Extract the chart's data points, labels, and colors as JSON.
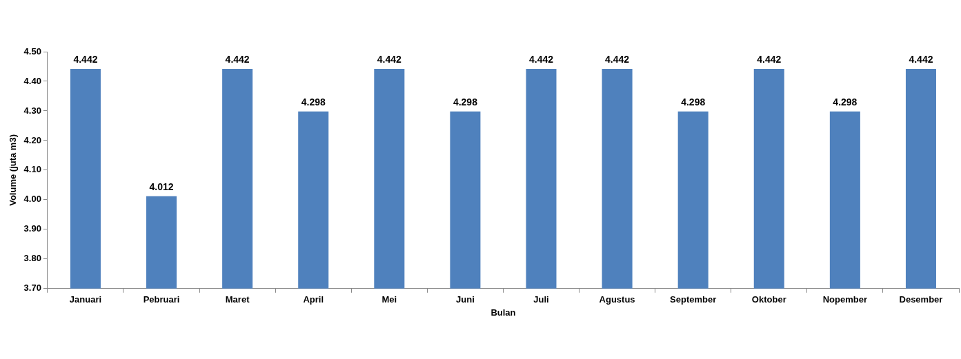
{
  "chart_data": {
    "type": "bar",
    "xlabel": "Bulan",
    "ylabel": "Volume (juta m3)",
    "categories": [
      "Januari",
      "Pebruari",
      "Maret",
      "April",
      "Mei",
      "Juni",
      "Juli",
      "Agustus",
      "September",
      "Oktober",
      "Nopember",
      "Desember"
    ],
    "values": [
      4.442,
      4.012,
      4.442,
      4.298,
      4.442,
      4.298,
      4.442,
      4.442,
      4.298,
      4.442,
      4.298,
      4.442
    ],
    "color": "#4f81bd",
    "ylim": [
      3.7,
      4.5
    ],
    "yticks": [
      {
        "value": 3.7,
        "label": "3.70"
      },
      {
        "value": 3.8,
        "label": "3.80"
      },
      {
        "value": 3.9,
        "label": "3.90"
      },
      {
        "value": 4.0,
        "label": "4.00"
      },
      {
        "value": 4.1,
        "label": "4.10"
      },
      {
        "value": 4.2,
        "label": "4.20"
      },
      {
        "value": 4.3,
        "label": "4.30"
      },
      {
        "value": 4.4,
        "label": "4.40"
      },
      {
        "value": 4.5,
        "label": "4.50"
      }
    ],
    "data_labels": true,
    "grid": false,
    "legend": false
  }
}
